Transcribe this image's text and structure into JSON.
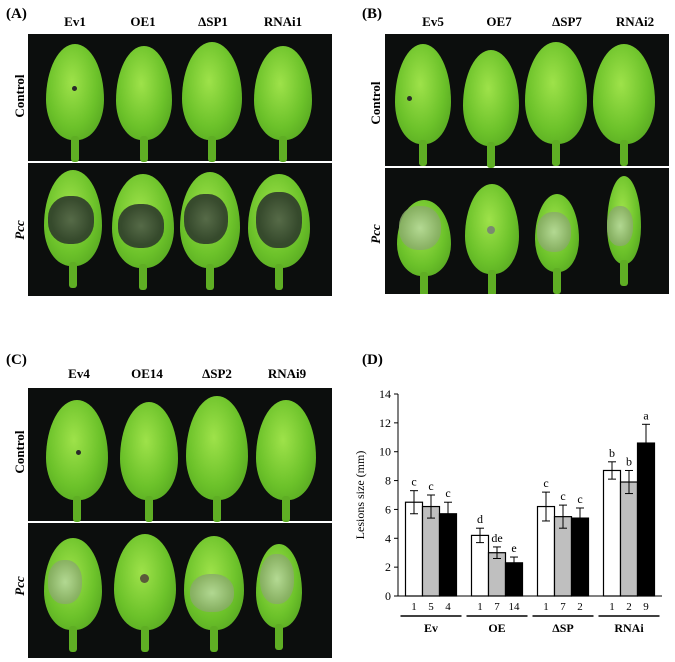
{
  "panels": [
    {
      "letter": "(A)",
      "columns": [
        "Ev1",
        "OE1",
        "ΔSP1",
        "RNAi1"
      ],
      "rows": [
        "Control",
        "Pcc"
      ]
    },
    {
      "letter": "(B)",
      "columns": [
        "Ev5",
        "OE7",
        "ΔSP7",
        "RNAi2"
      ],
      "rows": [
        "Control",
        "Pcc"
      ]
    },
    {
      "letter": "(C)",
      "columns": [
        "Ev4",
        "OE14",
        "ΔSP2",
        "RNAi9"
      ],
      "rows": [
        "Control",
        "Pcc"
      ]
    }
  ],
  "chart_panel_letter": "(D)",
  "chart_data": {
    "type": "bar",
    "ylabel": "Lesions size (mm)",
    "xlabel": "",
    "ylim": [
      0,
      14
    ],
    "yticks": [
      0,
      2,
      4,
      6,
      8,
      10,
      12,
      14
    ],
    "groups": [
      {
        "name": "Ev",
        "bars": [
          {
            "label": "1",
            "value": 6.5,
            "error": 0.8,
            "letter": "c",
            "color": "#ffffff"
          },
          {
            "label": "5",
            "value": 6.2,
            "error": 0.8,
            "letter": "c",
            "color": "#bfbfbf"
          },
          {
            "label": "4",
            "value": 5.7,
            "error": 0.8,
            "letter": "c",
            "color": "#000000"
          }
        ]
      },
      {
        "name": "OE",
        "bars": [
          {
            "label": "1",
            "value": 4.2,
            "error": 0.5,
            "letter": "d",
            "color": "#ffffff"
          },
          {
            "label": "7",
            "value": 3.0,
            "error": 0.4,
            "letter": "de",
            "color": "#bfbfbf"
          },
          {
            "label": "14",
            "value": 2.3,
            "error": 0.4,
            "letter": "e",
            "color": "#000000"
          }
        ]
      },
      {
        "name": "ΔSP",
        "bars": [
          {
            "label": "1",
            "value": 6.2,
            "error": 1.0,
            "letter": "c",
            "color": "#ffffff"
          },
          {
            "label": "7",
            "value": 5.5,
            "error": 0.8,
            "letter": "c",
            "color": "#bfbfbf"
          },
          {
            "label": "2",
            "value": 5.4,
            "error": 0.7,
            "letter": "c",
            "color": "#000000"
          }
        ]
      },
      {
        "name": "RNAi",
        "bars": [
          {
            "label": "1",
            "value": 8.7,
            "error": 0.6,
            "letter": "b",
            "color": "#ffffff"
          },
          {
            "label": "2",
            "value": 7.9,
            "error": 0.8,
            "letter": "b",
            "color": "#bfbfbf"
          },
          {
            "label": "9",
            "value": 10.6,
            "error": 1.3,
            "letter": "a",
            "color": "#000000"
          }
        ]
      }
    ]
  }
}
